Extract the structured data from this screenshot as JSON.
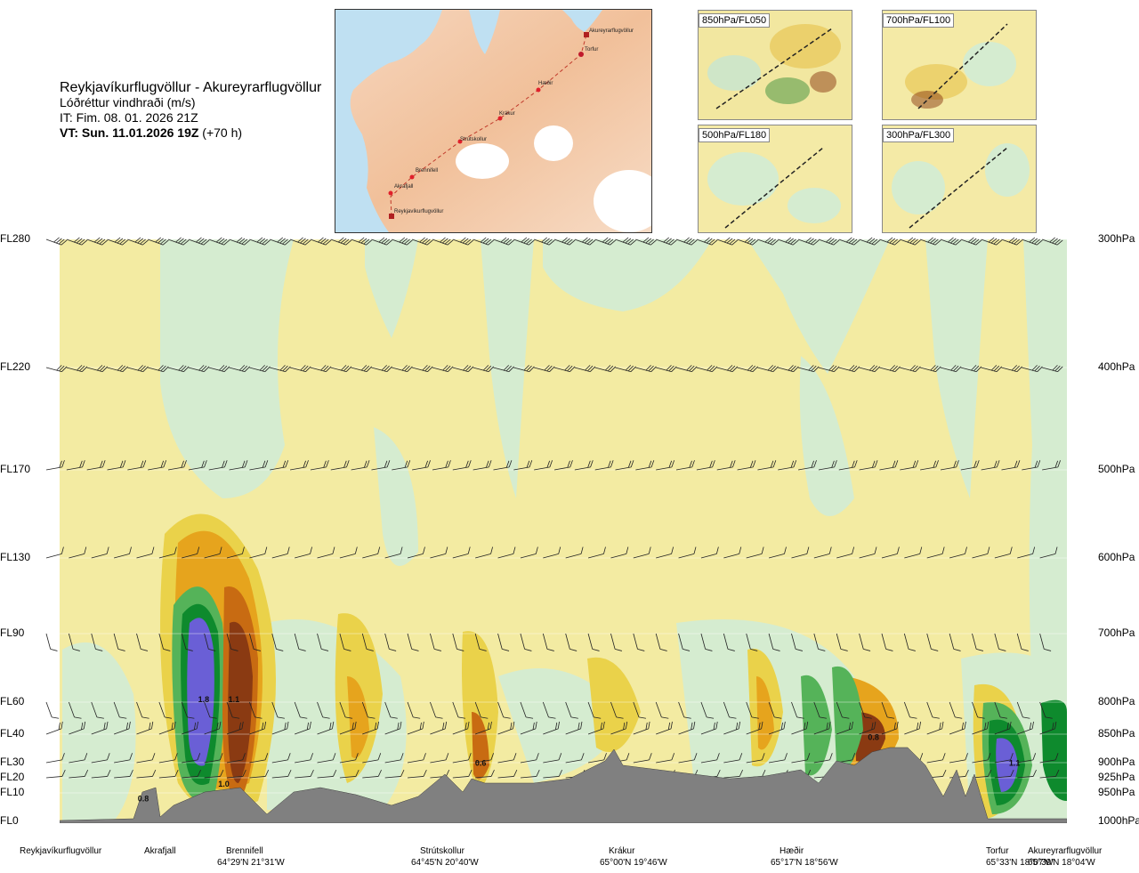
{
  "title": {
    "route": "Reykjavíkurflugvöllur - Akureyrarflugvöllur",
    "variable": "Lóðréttur vindhraði (m/s)",
    "it": "IT: Fim. 08. 01. 2026 21Z",
    "vt_bold": "VT: Sun. 11.01.2026 19Z",
    "vt_rest": " (+70 h)"
  },
  "map": {
    "stations": [
      "Akureyrarflugvöllur",
      "Torfur",
      "Hæðir",
      "Krákur",
      "Strútskollur",
      "Brennifell",
      "Akrafjall",
      "Reykjavíkurflugvöllur"
    ]
  },
  "insets": [
    {
      "label": "850hPa/FL050"
    },
    {
      "label": "700hPa/FL100"
    },
    {
      "label": "500hPa/FL180"
    },
    {
      "label": "300hPa/FL300"
    }
  ],
  "chart_data": {
    "type": "heatmap",
    "title": "Lóðréttur vindhraði (m/s)",
    "left_axis_labels": [
      {
        "label": "FL280",
        "p": 300
      },
      {
        "label": "FL220",
        "p": 400
      },
      {
        "label": "FL170",
        "p": 500
      },
      {
        "label": "FL130",
        "p": 600
      },
      {
        "label": "FL90",
        "p": 700
      },
      {
        "label": "FL60",
        "p": 800
      },
      {
        "label": "FL40",
        "p": 850
      },
      {
        "label": "FL30",
        "p": 900
      },
      {
        "label": "FL20",
        "p": 925
      },
      {
        "label": "FL10",
        "p": 950
      },
      {
        "label": "FL0",
        "p": 1000
      }
    ],
    "right_axis_labels": [
      {
        "label": "300hPa",
        "p": 300
      },
      {
        "label": "400hPa",
        "p": 400
      },
      {
        "label": "500hPa",
        "p": 500
      },
      {
        "label": "600hPa",
        "p": 600
      },
      {
        "label": "700hPa",
        "p": 700
      },
      {
        "label": "800hPa",
        "p": 800
      },
      {
        "label": "850hPa",
        "p": 850
      },
      {
        "label": "900hPa",
        "p": 900
      },
      {
        "label": "925hPa",
        "p": 925
      },
      {
        "label": "950hPa",
        "p": 950
      },
      {
        "label": "1000hPa",
        "p": 1000
      }
    ],
    "waypoints": [
      {
        "name": "Reykjavíkurflugvöllur",
        "coord": "",
        "pos": 0.0
      },
      {
        "name": "Akrafjall",
        "coord": "",
        "pos": 0.09
      },
      {
        "name": "Brennifell",
        "coord": "64°29'N 21°31'W",
        "pos": 0.19
      },
      {
        "name": "Strútskollur",
        "coord": "64°45'N 20°40'W",
        "pos": 0.38
      },
      {
        "name": "Krákur",
        "coord": "65°00'N 19°46'W",
        "pos": 0.57
      },
      {
        "name": "Hæðir",
        "coord": "65°17'N 18°56'W",
        "pos": 0.76
      },
      {
        "name": "Torfur",
        "coord": "65°33'N 18°07'W",
        "pos": 0.95
      },
      {
        "name": "Akureyrarflugvöllur",
        "coord": "65°39'N 18°04'W",
        "pos": 1.0
      }
    ],
    "extrema_labels": [
      {
        "text": "0.8",
        "pos": 0.083,
        "p": 965
      },
      {
        "text": "1.8",
        "pos": 0.143,
        "p": 800
      },
      {
        "text": "1.1",
        "pos": 0.173,
        "p": 800
      },
      {
        "text": "1.0",
        "pos": 0.163,
        "p": 940
      },
      {
        "text": "0.6",
        "pos": 0.418,
        "p": 905
      },
      {
        "text": "0.8",
        "pos": 0.808,
        "p": 860
      },
      {
        "text": "1.1",
        "pos": 0.948,
        "p": 905
      }
    ],
    "colors": {
      "background": "#f3eba2",
      "light_green": "#d5ecd0",
      "mid_green": "#a9d9a6",
      "green": "#55b359",
      "dark_green": "#0e8a2d",
      "blue": "#6a5fd6",
      "yellow": "#ead24a",
      "orange": "#e6a41d",
      "dark_orange": "#c86b12",
      "brown": "#8a3a12",
      "terrain": "#808080"
    }
  }
}
